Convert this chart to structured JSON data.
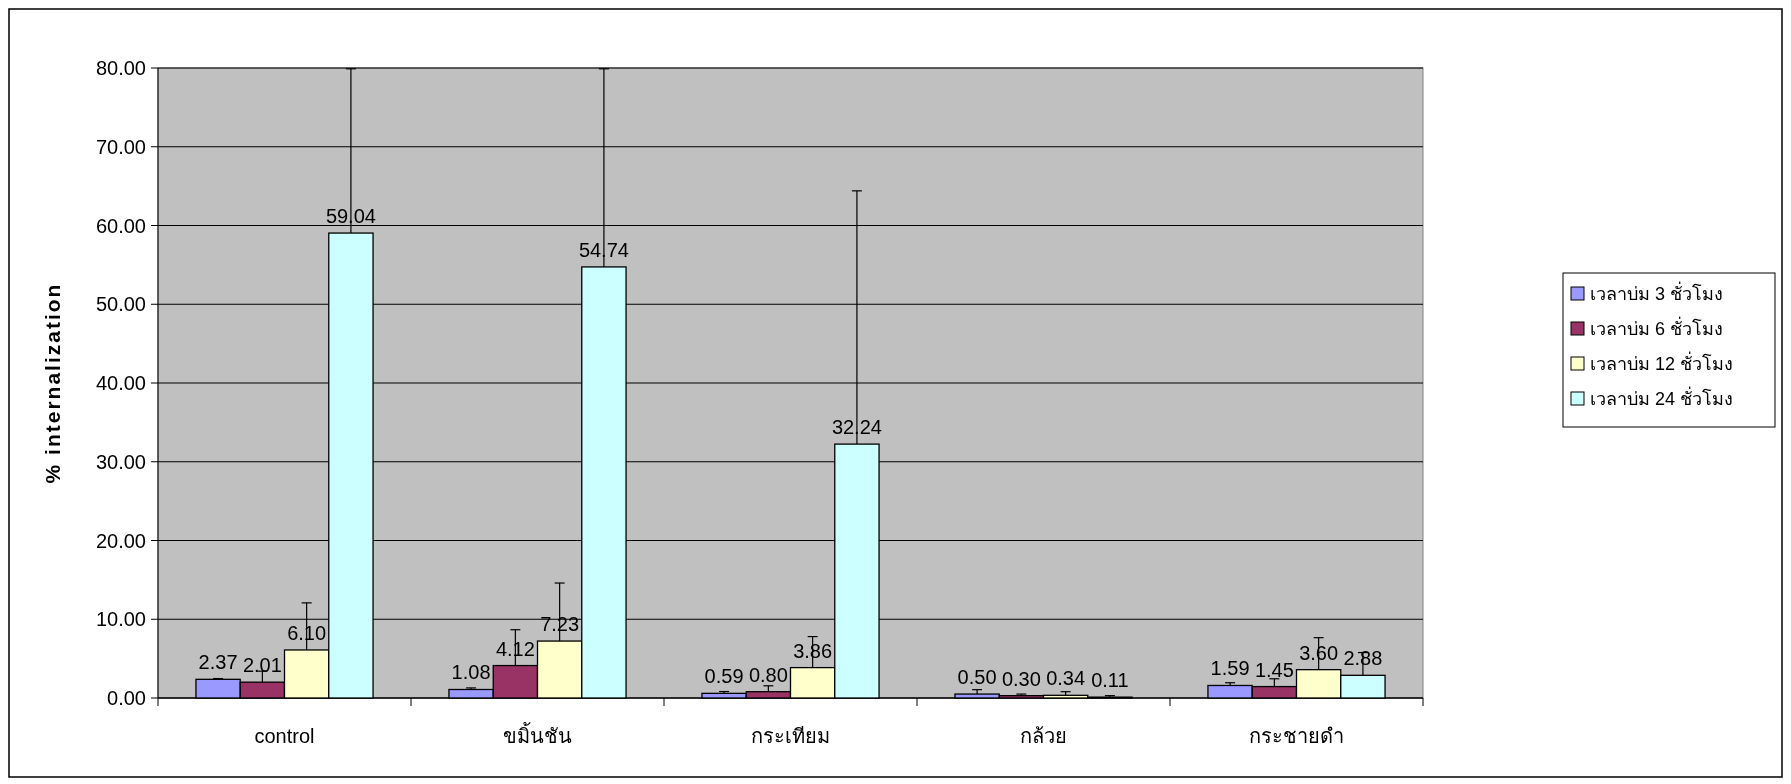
{
  "chart_data": {
    "type": "bar",
    "ylabel": "% internalization",
    "categories": [
      "control",
      "ขมิ้นชัน",
      "กระเทียม",
      "กล้วย",
      "กระชายดำ"
    ],
    "series": [
      {
        "name": "เวลาบ่ม 3 ชั่วโมง",
        "color": "#9999ff",
        "values": [
          2.37,
          1.08,
          0.59,
          0.5,
          1.59
        ],
        "value_labels": [
          "2.37",
          "1.08",
          "0.59",
          "0.50",
          "1.59"
        ],
        "errors": [
          [
            2.37,
            2.47
          ],
          [
            1.08,
            1.28
          ],
          [
            0.59,
            0.82
          ],
          [
            0.5,
            1.06
          ],
          [
            1.59,
            1.94
          ]
        ]
      },
      {
        "name": "เวลาบ่ม 6 ชั่วโมง",
        "color": "#993366",
        "values": [
          2.01,
          4.12,
          0.8,
          0.3,
          1.45
        ],
        "value_labels": [
          "2.01",
          "4.12",
          "0.80",
          "0.30",
          "1.45"
        ],
        "errors": [
          [
            2.01,
            3.41
          ],
          [
            4.12,
            8.67
          ],
          [
            0.8,
            1.55
          ],
          [
            0.3,
            0.5
          ],
          [
            1.45,
            2.44
          ]
        ]
      },
      {
        "name": "เวลาบ่ม 12 ชั่วโมง",
        "color": "#ffffcc",
        "values": [
          6.1,
          7.23,
          3.86,
          0.34,
          3.6
        ],
        "value_labels": [
          "6.10",
          "7.23",
          "3.86",
          "0.34",
          "3.60"
        ],
        "errors": [
          [
            6.1,
            12.08
          ],
          [
            7.23,
            14.6
          ],
          [
            3.86,
            7.8
          ],
          [
            0.34,
            0.8
          ],
          [
            3.6,
            7.66
          ]
        ]
      },
      {
        "name": "เวลาบ่ม 24 ชั่วโมง",
        "color": "#ccffff",
        "values": [
          59.04,
          54.74,
          32.24,
          0.11,
          2.88
        ],
        "value_labels": [
          "59.04",
          "54.74",
          "32.24",
          "0.11",
          "2.88"
        ],
        "errors": [
          [
            59.04,
            79.9
          ],
          [
            54.74,
            79.9
          ],
          [
            32.24,
            64.4
          ],
          [
            0.11,
            0.3
          ],
          [
            2.88,
            5.77
          ]
        ]
      }
    ],
    "ylim": [
      0,
      80
    ],
    "yticks": [
      {
        "value": 0,
        "label": "0.00"
      },
      {
        "value": 10,
        "label": "10.00"
      },
      {
        "value": 20,
        "label": "20.00"
      },
      {
        "value": 30,
        "label": "30.00"
      },
      {
        "value": 40,
        "label": "40.00"
      },
      {
        "value": 50,
        "label": "50.00"
      },
      {
        "value": 60,
        "label": "60.00"
      },
      {
        "value": 70,
        "label": "70.00"
      },
      {
        "value": 80,
        "label": "80.00"
      }
    ],
    "grid": "y",
    "legend": "right"
  }
}
